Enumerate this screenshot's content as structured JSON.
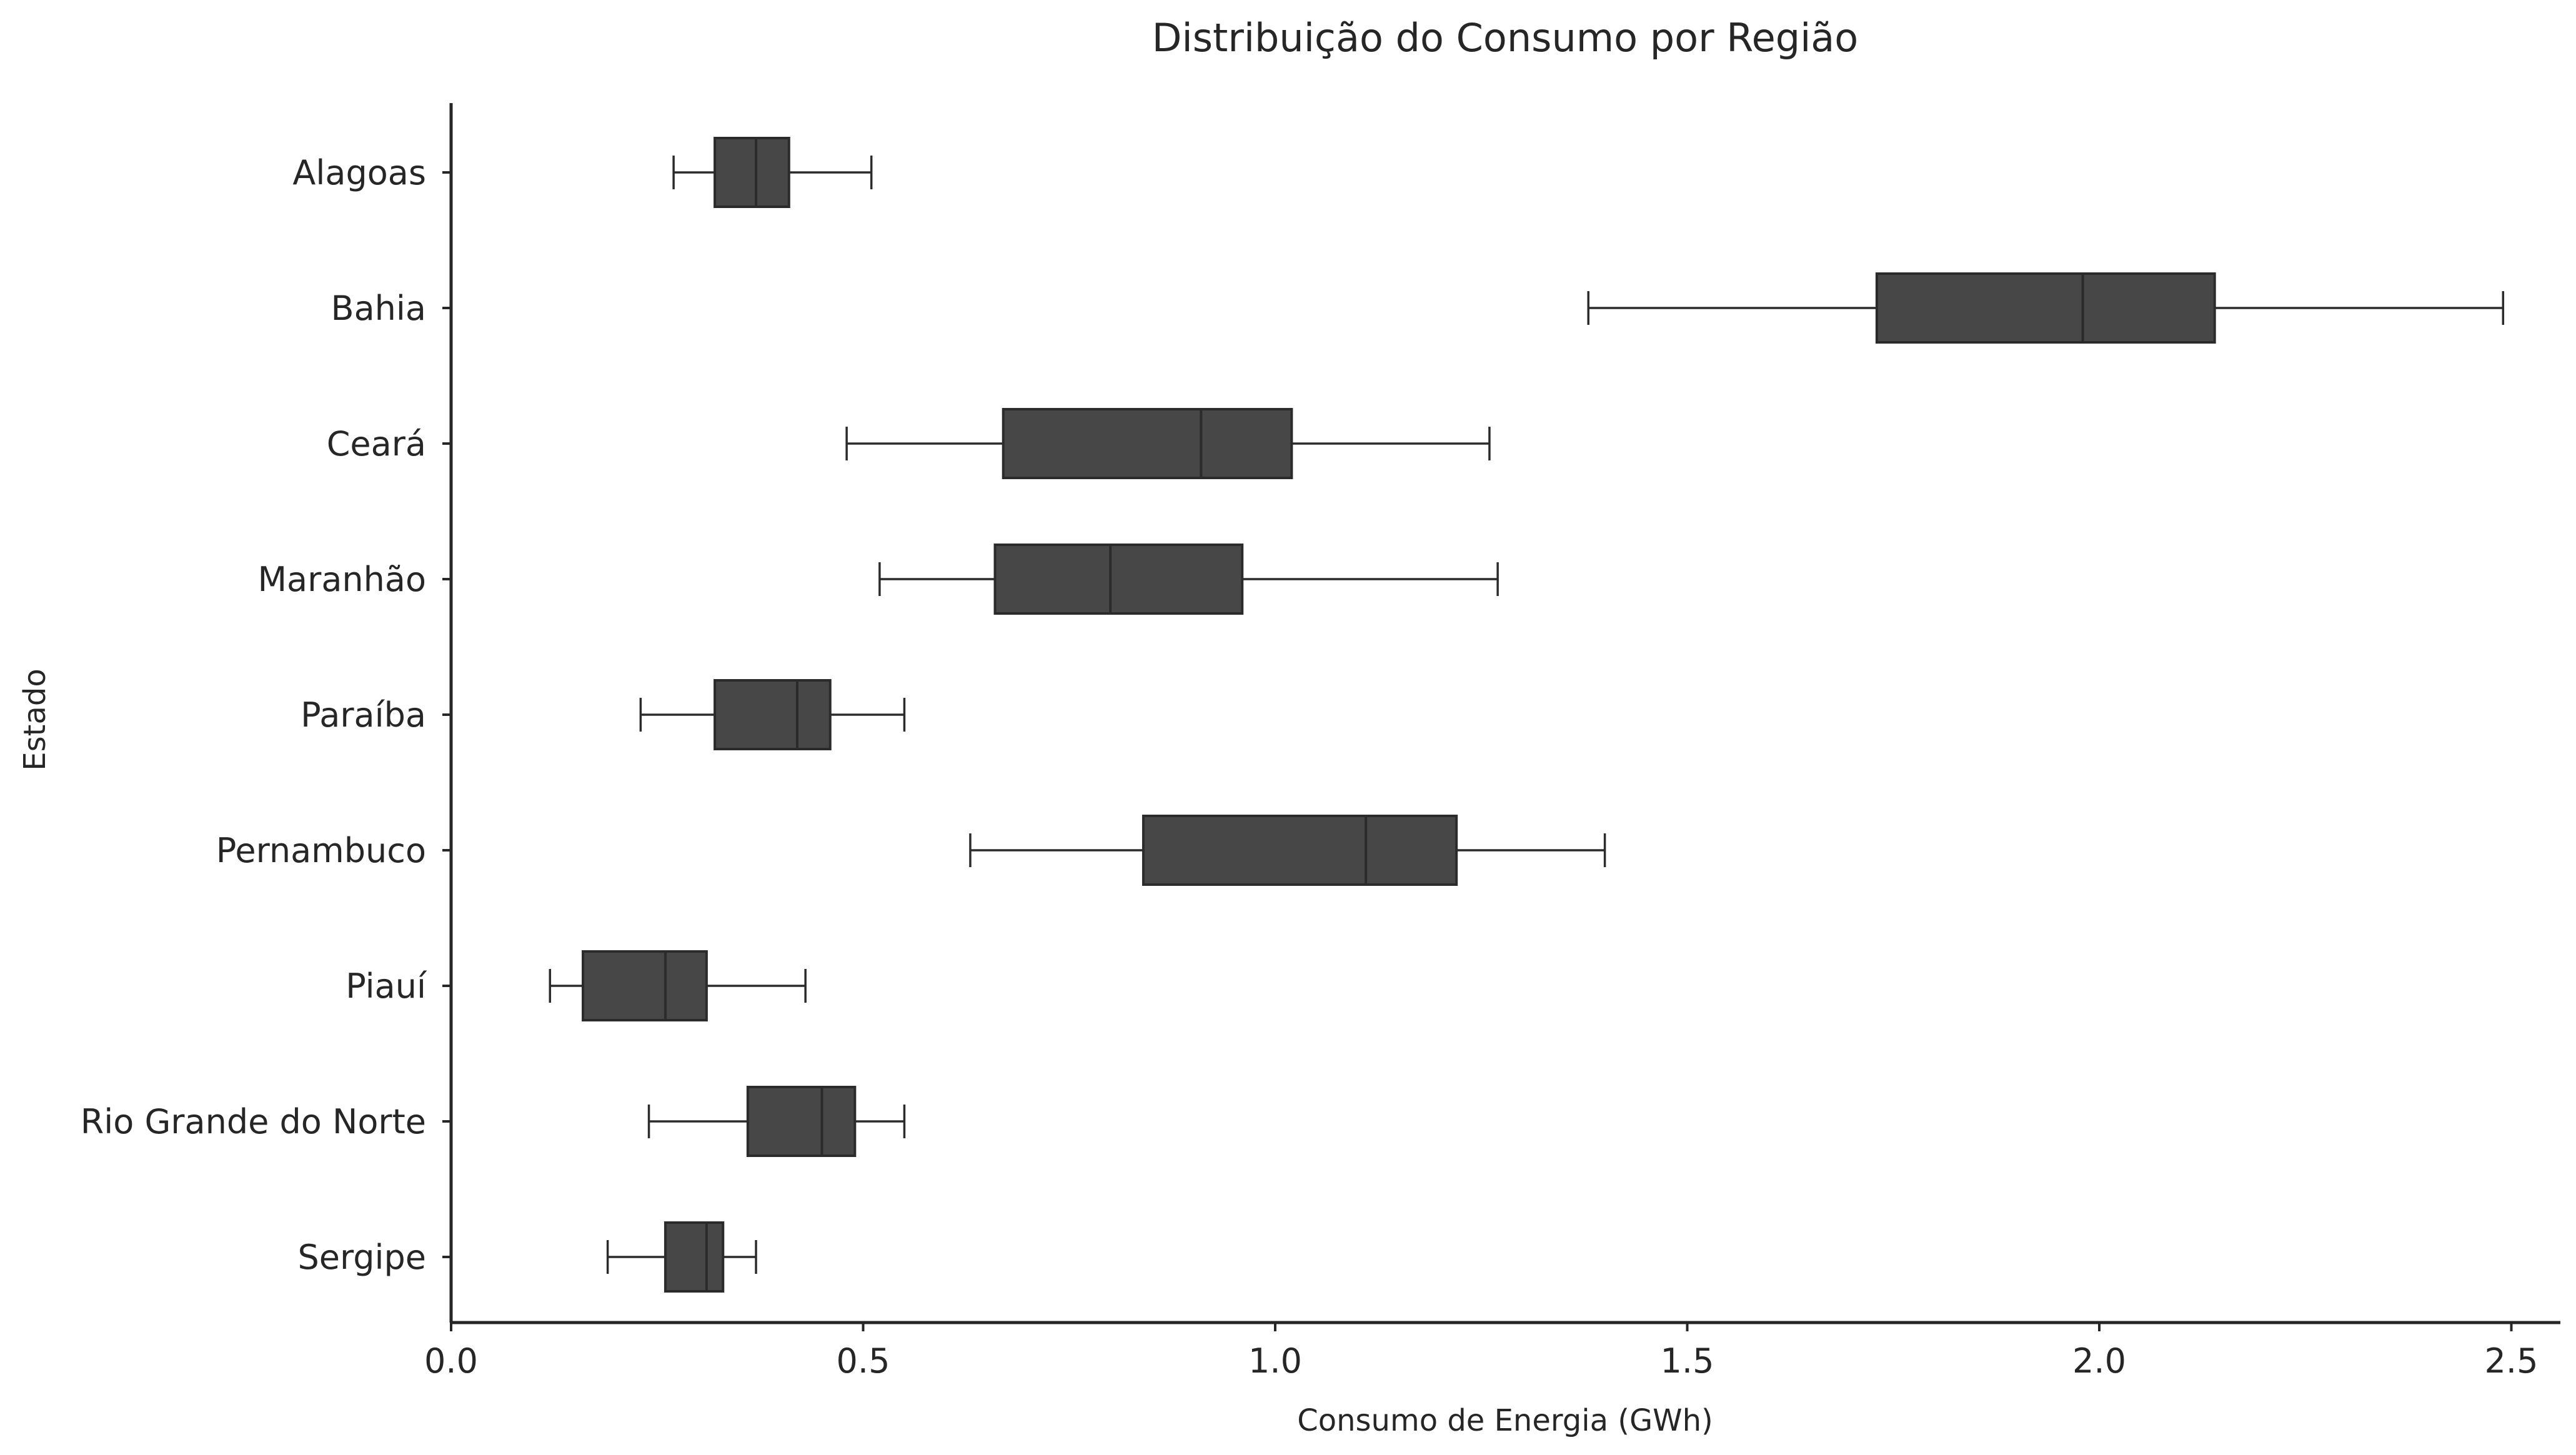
{
  "chart_data": {
    "type": "boxplot",
    "orientation": "horizontal",
    "title": "Distribuição do Consumo por Região",
    "xlabel": "Consumo de Energia (GWh)",
    "ylabel": "Estado",
    "xlim": [
      0.0,
      2.56
    ],
    "xticks": [
      0.0,
      0.5,
      1.0,
      1.5,
      2.0,
      2.5
    ],
    "xtick_labels": [
      "0.0",
      "0.5",
      "1.0",
      "1.5",
      "2.0",
      "2.5"
    ],
    "grid": false,
    "box_color": "#474747",
    "categories": [
      "Alagoas",
      "Bahia",
      "Ceará",
      "Maranhão",
      "Paraíba",
      "Pernambuco",
      "Piauí",
      "Rio Grande do Norte",
      "Sergipe"
    ],
    "boxes": [
      {
        "category": "Alagoas",
        "whislo": 0.27,
        "q1": 0.32,
        "median": 0.37,
        "q3": 0.41,
        "whishi": 0.51
      },
      {
        "category": "Bahia",
        "whislo": 1.38,
        "q1": 1.73,
        "median": 1.98,
        "q3": 2.14,
        "whishi": 2.49
      },
      {
        "category": "Ceará",
        "whislo": 0.48,
        "q1": 0.67,
        "median": 0.91,
        "q3": 1.02,
        "whishi": 1.26
      },
      {
        "category": "Maranhão",
        "whislo": 0.52,
        "q1": 0.66,
        "median": 0.8,
        "q3": 0.96,
        "whishi": 1.27
      },
      {
        "category": "Paraíba",
        "whislo": 0.23,
        "q1": 0.32,
        "median": 0.42,
        "q3": 0.46,
        "whishi": 0.55
      },
      {
        "category": "Pernambuco",
        "whislo": 0.63,
        "q1": 0.84,
        "median": 1.11,
        "q3": 1.22,
        "whishi": 1.4
      },
      {
        "category": "Piauí",
        "whislo": 0.12,
        "q1": 0.16,
        "median": 0.26,
        "q3": 0.31,
        "whishi": 0.43
      },
      {
        "category": "Rio Grande do Norte",
        "whislo": 0.24,
        "q1": 0.36,
        "median": 0.45,
        "q3": 0.49,
        "whishi": 0.55
      },
      {
        "category": "Sergipe",
        "whislo": 0.19,
        "q1": 0.26,
        "median": 0.31,
        "q3": 0.33,
        "whishi": 0.37
      }
    ]
  }
}
